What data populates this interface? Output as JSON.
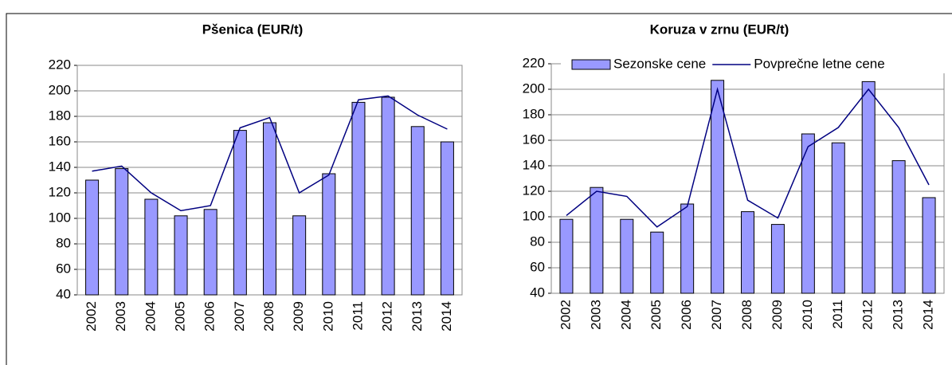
{
  "chart_data": [
    {
      "type": "bar-line",
      "title": "Pšenica (EUR/t)",
      "categories": [
        "2002",
        "2003",
        "2004",
        "2005",
        "2006",
        "2007",
        "2008",
        "2009",
        "2010",
        "2011",
        "2012",
        "2013",
        "2014"
      ],
      "series": [
        {
          "kind": "bar",
          "color": "#9999ff",
          "values": [
            130,
            139,
            115,
            102,
            107,
            169,
            175,
            102,
            135,
            191,
            195,
            172,
            160
          ]
        },
        {
          "kind": "line",
          "color": "#000080",
          "values": [
            137,
            141,
            120,
            106,
            110,
            171,
            179,
            120,
            134,
            193,
            196,
            181,
            170
          ]
        }
      ],
      "ylim": [
        40,
        220
      ],
      "yticks": [
        40,
        60,
        80,
        100,
        120,
        140,
        160,
        180,
        200,
        220
      ],
      "grid": true,
      "legend": false
    },
    {
      "type": "bar-line",
      "title": "Koruza v zrnu (EUR/t)",
      "categories": [
        "2002",
        "2003",
        "2004",
        "2005",
        "2006",
        "2007",
        "2008",
        "2009",
        "2010",
        "2011",
        "2012",
        "2013",
        "2014"
      ],
      "series": [
        {
          "name": "Sezonske cene",
          "kind": "bar",
          "color": "#9999ff",
          "values": [
            98,
            123,
            98,
            88,
            110,
            207,
            104,
            94,
            165,
            158,
            206,
            144,
            115
          ]
        },
        {
          "name": "Povprečne letne cene",
          "kind": "line",
          "color": "#000080",
          "values": [
            101,
            120,
            116,
            92,
            108,
            200,
            113,
            99,
            155,
            170,
            200,
            170,
            125
          ]
        }
      ],
      "ylim": [
        40,
        220
      ],
      "yticks": [
        40,
        60,
        80,
        100,
        120,
        140,
        160,
        180,
        200,
        220
      ],
      "grid": true,
      "legend": "top"
    }
  ]
}
